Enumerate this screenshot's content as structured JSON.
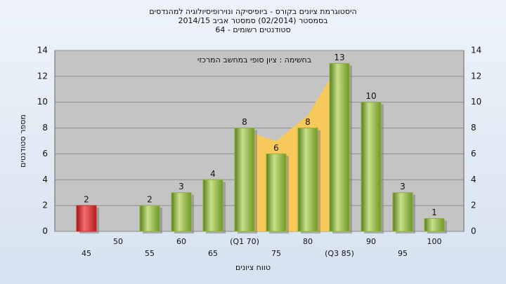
{
  "chart_data": {
    "type": "bar",
    "title": "היסטוגרמת ציונים בקורס - ביופיסיקה ונוירופיסיולוגיה למהנדסים",
    "subtitle": "בסמסטר  (02/2014)  סמסטר אביב 2014/15",
    "subtitle2": "סטודנטים רשומים - 64",
    "annotation": "בחשימה : ציון סופי במחשב המרכזי",
    "x_label": "טווח ציונים",
    "y_label": "מספר סטודנטים",
    "categories": [
      "45",
      "50",
      "55",
      "60",
      "65",
      "(Q1 70)",
      "75",
      "80",
      "(Q3 85)",
      "90",
      "95",
      "100"
    ],
    "values": [
      2,
      null,
      2,
      3,
      4,
      8,
      6,
      8,
      13,
      10,
      3,
      1
    ],
    "colors": [
      "#d42a2a",
      "#8db33a",
      "#8db33a",
      "#8db33a",
      "#8db33a",
      "#8db33a",
      "#8db33a",
      "#8db33a",
      "#8db33a",
      "#8db33a",
      "#8db33a",
      "#8db33a"
    ],
    "area": {
      "color": "#f7c95a",
      "values": [
        null,
        null,
        null,
        null,
        null,
        7.8,
        7,
        9,
        13,
        null,
        null,
        null
      ]
    },
    "ylim": [
      0,
      14
    ],
    "yticks": [
      0,
      2,
      4,
      6,
      8,
      10,
      12,
      14
    ],
    "grid": true
  }
}
